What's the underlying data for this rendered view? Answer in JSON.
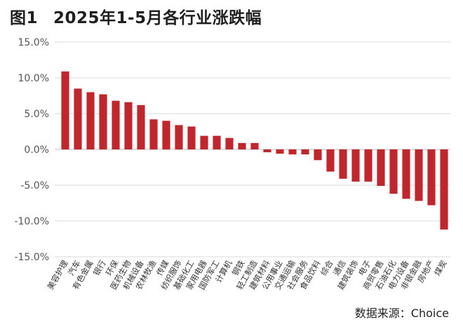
{
  "title": {
    "figure_label": "图1",
    "text": "2025年1-5月各行业涨跌幅"
  },
  "source": "数据来源：Choice",
  "colors": {
    "bar": "#c0272d",
    "grid": "#d9d9d9",
    "axis": "#bfbfbf"
  },
  "chart_data": {
    "type": "bar",
    "title": "2025年1-5月各行业涨跌幅",
    "xlabel": "",
    "ylabel": "",
    "ylim": [
      -15,
      15
    ],
    "yticks": [
      15,
      10,
      5,
      0,
      -5,
      -10,
      -15
    ],
    "ytick_labels": [
      "15.0%",
      "10.0%",
      "5.0%",
      "0.0%",
      "-5.0%",
      "-10.0%",
      "-15.0%"
    ],
    "grid": true,
    "legend": "none",
    "categories": [
      "美容护理",
      "汽车",
      "有色金属",
      "银行",
      "环保",
      "医药生物",
      "机械设备",
      "农林牧渔",
      "传媒",
      "纺织服饰",
      "基础化工",
      "家用电器",
      "国防军工",
      "计算机",
      "钢铁",
      "轻工制造",
      "建筑材料",
      "公用事业",
      "交通运输",
      "社会服务",
      "食品饮料",
      "综合",
      "通信",
      "建筑装饰",
      "电子",
      "商贸零售",
      "石油石化",
      "电力设备",
      "非银金融",
      "房地产",
      "煤炭"
    ],
    "values": [
      10.9,
      8.5,
      8.0,
      7.7,
      6.8,
      6.6,
      6.2,
      4.2,
      4.0,
      3.4,
      3.2,
      1.9,
      1.9,
      1.6,
      0.9,
      0.9,
      -0.4,
      -0.6,
      -0.7,
      -0.7,
      -1.5,
      -3.1,
      -4.1,
      -4.5,
      -4.5,
      -5.1,
      -6.2,
      -6.9,
      -7.2,
      -7.8,
      -11.2
    ]
  }
}
